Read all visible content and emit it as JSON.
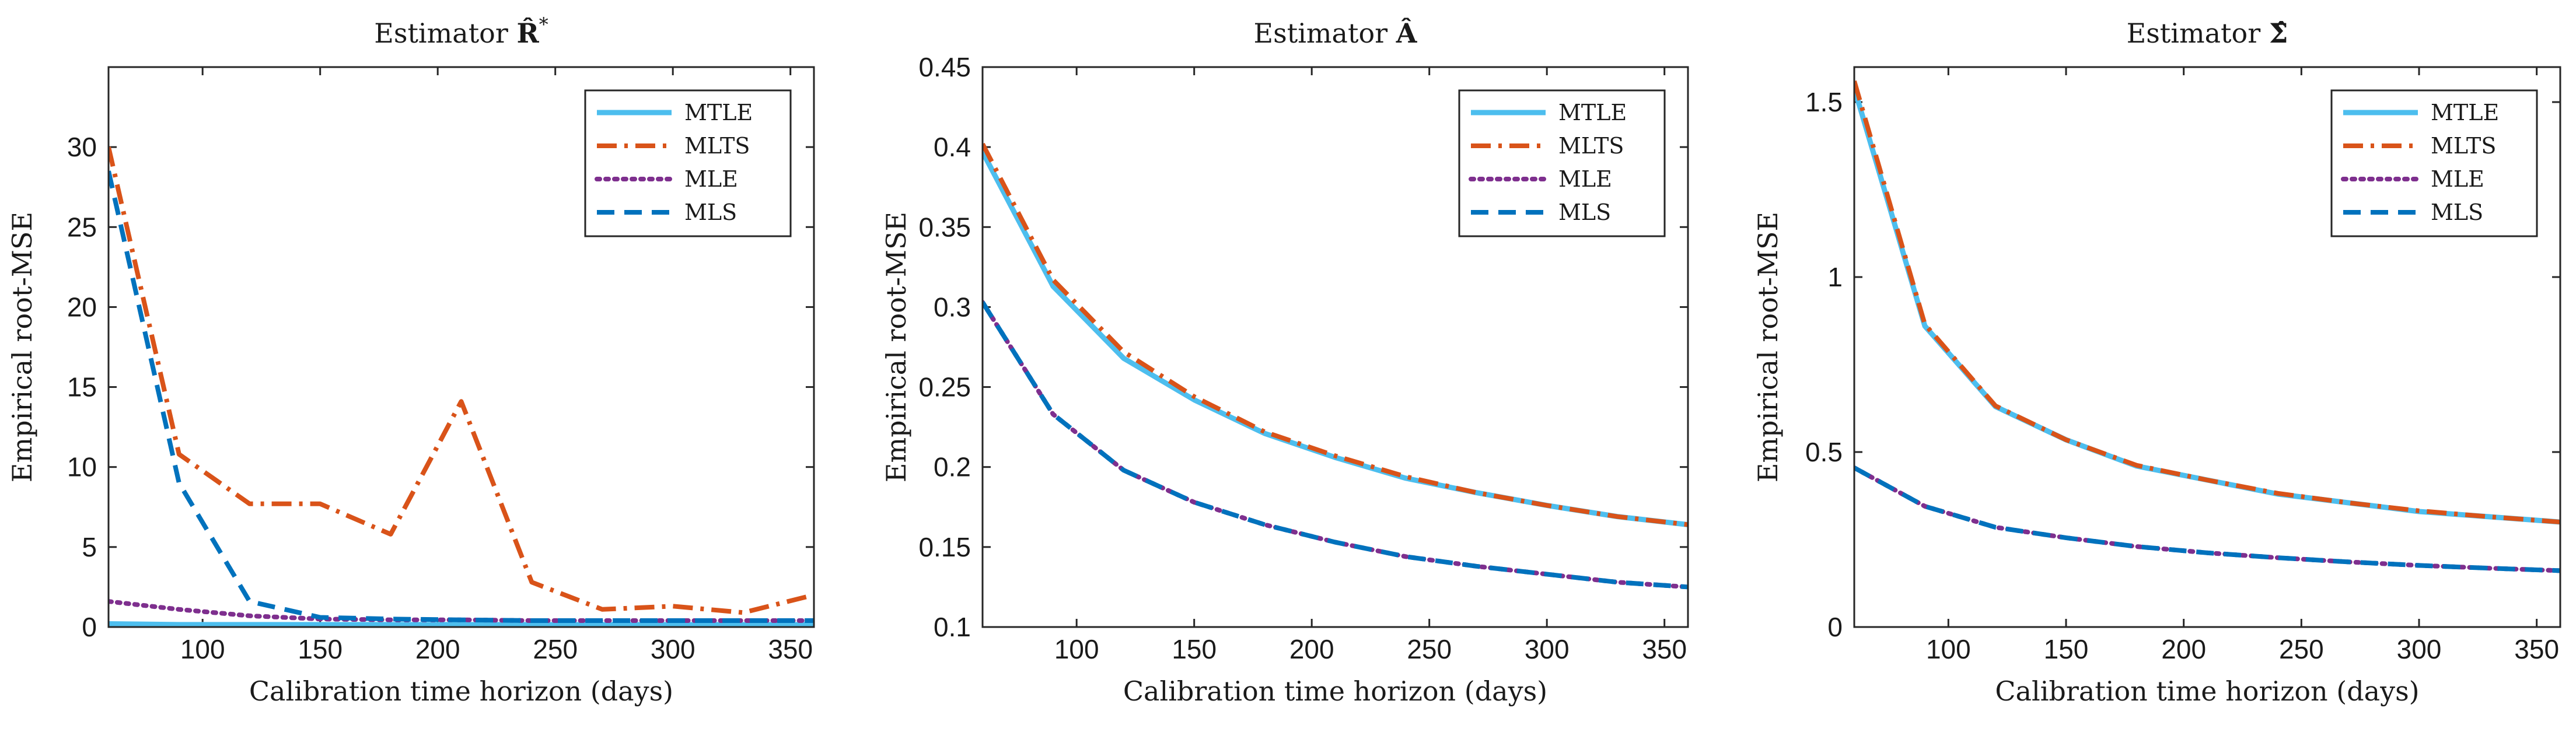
{
  "figure": {
    "background": "#ffffff"
  },
  "chart_data": [
    {
      "type": "line",
      "title": "Estimator R̂*",
      "title_parts": {
        "prefix": "Estimator ",
        "symbol": "R̂",
        "sup": "*"
      },
      "xlabel": "Calibration time horizon (days)",
      "ylabel": "Empirical root-MSE",
      "xlim": [
        60,
        360
      ],
      "ylim": [
        0,
        35
      ],
      "xticks": [
        100,
        150,
        200,
        250,
        300,
        350
      ],
      "xtick_labels": [
        "100",
        "150",
        "200",
        "250",
        "300",
        "350"
      ],
      "yticks": [
        0,
        5,
        10,
        15,
        20,
        25,
        30
      ],
      "ytick_labels": [
        "0",
        "5",
        "10",
        "15",
        "20",
        "25",
        "30"
      ],
      "grid": false,
      "legend_position": "top-right",
      "x": [
        60,
        90,
        120,
        150,
        180,
        210,
        240,
        270,
        300,
        330,
        360
      ],
      "series": [
        {
          "name": "MTLE",
          "color": "#4DBEEE",
          "dash": "solid",
          "values": [
            0.2,
            0.15,
            0.15,
            0.15,
            0.15,
            0.15,
            0.15,
            0.15,
            0.15,
            0.15,
            0.15
          ]
        },
        {
          "name": "MLTS",
          "color": "#D95319",
          "dash": "dashdot",
          "values": [
            30.0,
            10.8,
            7.7,
            7.7,
            5.8,
            14.1,
            2.8,
            1.1,
            1.3,
            0.9,
            2.0
          ]
        },
        {
          "name": "MLE",
          "color": "#7E2F8E",
          "dash": "dotted",
          "values": [
            1.6,
            1.1,
            0.7,
            0.5,
            0.45,
            0.45,
            0.4,
            0.4,
            0.4,
            0.4,
            0.4
          ]
        },
        {
          "name": "MLS",
          "color": "#0072BD",
          "dash": "dashed",
          "values": [
            28.5,
            9.0,
            1.6,
            0.6,
            0.5,
            0.45,
            0.4,
            0.4,
            0.4,
            0.4,
            0.4
          ]
        }
      ]
    },
    {
      "type": "line",
      "title": "Estimator Â",
      "title_parts": {
        "prefix": "Estimator ",
        "symbol": "Â",
        "sup": ""
      },
      "xlabel": "Calibration time horizon (days)",
      "ylabel": "Empirical root-MSE",
      "xlim": [
        60,
        360
      ],
      "ylim": [
        0.1,
        0.45
      ],
      "xticks": [
        100,
        150,
        200,
        250,
        300,
        350
      ],
      "xtick_labels": [
        "100",
        "150",
        "200",
        "250",
        "300",
        "350"
      ],
      "yticks": [
        0.1,
        0.15,
        0.2,
        0.25,
        0.3,
        0.35,
        0.4,
        0.45
      ],
      "ytick_labels": [
        "0.1",
        "0.15",
        "0.2",
        "0.25",
        "0.3",
        "0.35",
        "0.4",
        "0.45"
      ],
      "grid": false,
      "legend_position": "top-right",
      "x": [
        60,
        90,
        120,
        150,
        180,
        210,
        240,
        270,
        300,
        330,
        360
      ],
      "series": [
        {
          "name": "MTLE",
          "color": "#4DBEEE",
          "dash": "solid",
          "values": [
            0.397,
            0.313,
            0.268,
            0.242,
            0.221,
            0.206,
            0.193,
            0.184,
            0.176,
            0.169,
            0.164
          ]
        },
        {
          "name": "MLTS",
          "color": "#D95319",
          "dash": "dashdot",
          "values": [
            0.402,
            0.317,
            0.272,
            0.244,
            0.222,
            0.207,
            0.194,
            0.184,
            0.176,
            0.169,
            0.164
          ]
        },
        {
          "name": "MLE",
          "color": "#7E2F8E",
          "dash": "dotted",
          "values": [
            0.303,
            0.233,
            0.198,
            0.178,
            0.164,
            0.153,
            0.144,
            0.138,
            0.133,
            0.128,
            0.125
          ]
        },
        {
          "name": "MLS",
          "color": "#0072BD",
          "dash": "dashed",
          "values": [
            0.303,
            0.233,
            0.198,
            0.178,
            0.164,
            0.153,
            0.144,
            0.138,
            0.133,
            0.128,
            0.125
          ]
        }
      ]
    },
    {
      "type": "line",
      "title": "Estimator Σ̂",
      "title_parts": {
        "prefix": "Estimator ",
        "symbol": "Σ̂",
        "sup": ""
      },
      "xlabel": "Calibration time horizon (days)",
      "ylabel": "Empirical root-MSE",
      "xlim": [
        60,
        360
      ],
      "ylim": [
        0,
        1.6
      ],
      "xticks": [
        100,
        150,
        200,
        250,
        300,
        350
      ],
      "xtick_labels": [
        "100",
        "150",
        "200",
        "250",
        "300",
        "350"
      ],
      "yticks": [
        0,
        0.5,
        1,
        1.5
      ],
      "ytick_labels": [
        "0",
        "0.5",
        "1",
        "1.5"
      ],
      "grid": false,
      "legend_position": "top-right",
      "x": [
        60,
        90,
        120,
        150,
        180,
        210,
        240,
        270,
        300,
        330,
        360
      ],
      "series": [
        {
          "name": "MTLE",
          "color": "#4DBEEE",
          "dash": "solid",
          "values": [
            1.54,
            0.86,
            0.63,
            0.535,
            0.46,
            0.42,
            0.38,
            0.355,
            0.33,
            0.315,
            0.3
          ]
        },
        {
          "name": "MLTS",
          "color": "#D95319",
          "dash": "dashdot",
          "values": [
            1.56,
            0.865,
            0.632,
            0.535,
            0.462,
            0.42,
            0.382,
            0.355,
            0.332,
            0.315,
            0.3
          ]
        },
        {
          "name": "MLE",
          "color": "#7E2F8E",
          "dash": "dotted",
          "values": [
            0.455,
            0.345,
            0.285,
            0.255,
            0.23,
            0.212,
            0.198,
            0.186,
            0.176,
            0.168,
            0.161
          ]
        },
        {
          "name": "MLS",
          "color": "#0072BD",
          "dash": "dashed",
          "values": [
            0.455,
            0.345,
            0.285,
            0.255,
            0.23,
            0.212,
            0.198,
            0.186,
            0.176,
            0.168,
            0.161
          ]
        }
      ]
    }
  ]
}
